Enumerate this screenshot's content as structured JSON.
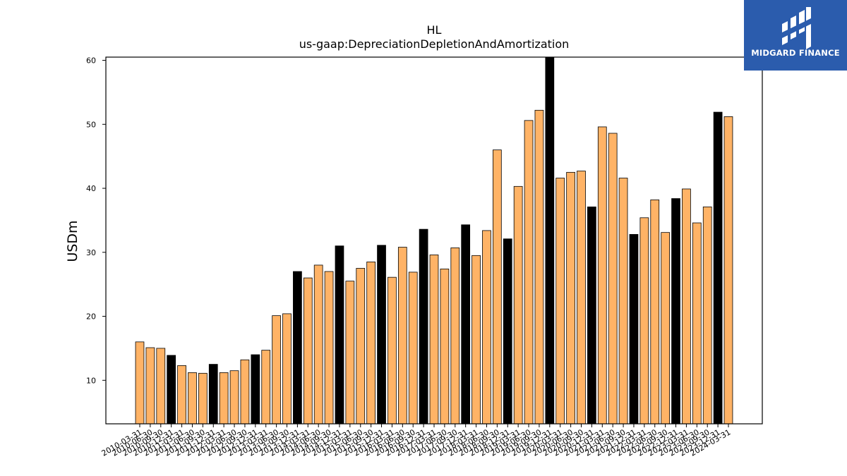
{
  "chart_data": {
    "type": "bar",
    "title": "HL",
    "subtitle": "us-gaap:DepreciationDepletionAndAmortization",
    "xlabel": "",
    "ylabel": "USDm",
    "ylim": [
      3.2,
      60.5
    ],
    "yticks": [
      10,
      20,
      30,
      40,
      50,
      60
    ],
    "grid": false,
    "colors": {
      "quarter": "#ffb366",
      "fiscal_year": "#000000",
      "edge": "#000000"
    },
    "categories": [
      "2010-03-31",
      "2010-06-30",
      "2010-09-30",
      "2010-12-31",
      "2011-03-31",
      "2011-06-30",
      "2011-09-30",
      "2011-12-31",
      "2012-03-31",
      "2012-06-30",
      "2012-09-30",
      "2012-12-31",
      "2013-03-31",
      "2013-06-30",
      "2013-09-30",
      "2013-12-31",
      "2014-03-31",
      "2014-06-30",
      "2014-09-30",
      "2014-12-31",
      "2015-03-31",
      "2015-06-30",
      "2015-09-30",
      "2015-12-31",
      "2016-03-31",
      "2016-06-30",
      "2016-09-30",
      "2016-12-31",
      "2017-03-31",
      "2017-06-30",
      "2017-09-30",
      "2017-12-31",
      "2018-03-31",
      "2018-06-30",
      "2018-09-30",
      "2018-12-31",
      "2019-03-31",
      "2019-06-30",
      "2019-09-30",
      "2019-12-31",
      "2020-03-31",
      "2020-06-30",
      "2020-09-30",
      "2020-12-31",
      "2021-03-31",
      "2021-06-30",
      "2021-09-30",
      "2021-12-31",
      "2022-03-31",
      "2022-06-30",
      "2022-09-30",
      "2022-12-31",
      "2023-03-31",
      "2023-06-30",
      "2023-09-30",
      "2023-12-31",
      "2024-03-31"
    ],
    "values": [
      16.0,
      15.1,
      15.0,
      13.9,
      12.3,
      11.2,
      11.1,
      12.5,
      11.2,
      11.5,
      13.2,
      14.0,
      14.7,
      20.1,
      20.4,
      27.0,
      26.0,
      28.0,
      27.0,
      31.0,
      25.5,
      27.5,
      28.5,
      31.1,
      26.1,
      30.8,
      26.9,
      33.6,
      29.6,
      27.4,
      30.7,
      34.3,
      29.5,
      33.4,
      46.0,
      32.1,
      40.3,
      50.6,
      52.2,
      60.5,
      41.6,
      42.5,
      42.7,
      37.1,
      49.6,
      48.6,
      41.6,
      32.8,
      35.4,
      38.2,
      33.1,
      38.4,
      39.9,
      34.6,
      37.1,
      51.9,
      51.2
    ],
    "fiscal_year_end": [
      false,
      false,
      false,
      true,
      false,
      false,
      false,
      true,
      false,
      false,
      false,
      true,
      false,
      false,
      false,
      true,
      false,
      false,
      false,
      true,
      false,
      false,
      false,
      true,
      false,
      false,
      false,
      true,
      false,
      false,
      false,
      true,
      false,
      false,
      false,
      true,
      false,
      false,
      false,
      true,
      false,
      false,
      false,
      true,
      false,
      false,
      false,
      true,
      false,
      false,
      false,
      true,
      false,
      false,
      false,
      true,
      false
    ]
  },
  "logo": {
    "text": "MIDGARD FINANCE",
    "icon": "midgard-logo-icon"
  }
}
